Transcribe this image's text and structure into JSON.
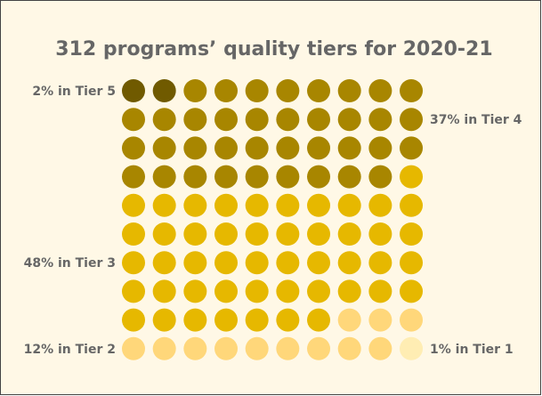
{
  "chart_data": {
    "type": "waffle",
    "title": "312 programs’ quality tiers for 2020-21",
    "values": [
      2,
      37,
      48,
      12,
      1
    ],
    "value_labels": [
      "2% in Tier 5",
      "37% in Tier 4",
      "48% in Tier 3",
      "12% in Tier 2",
      "1% in Tier 1"
    ],
    "colors": [
      "#705a00",
      "#a88600",
      "#e6b800",
      "#ffd77a",
      "#ffedb3"
    ],
    "rows": 10,
    "columns": 10
  }
}
